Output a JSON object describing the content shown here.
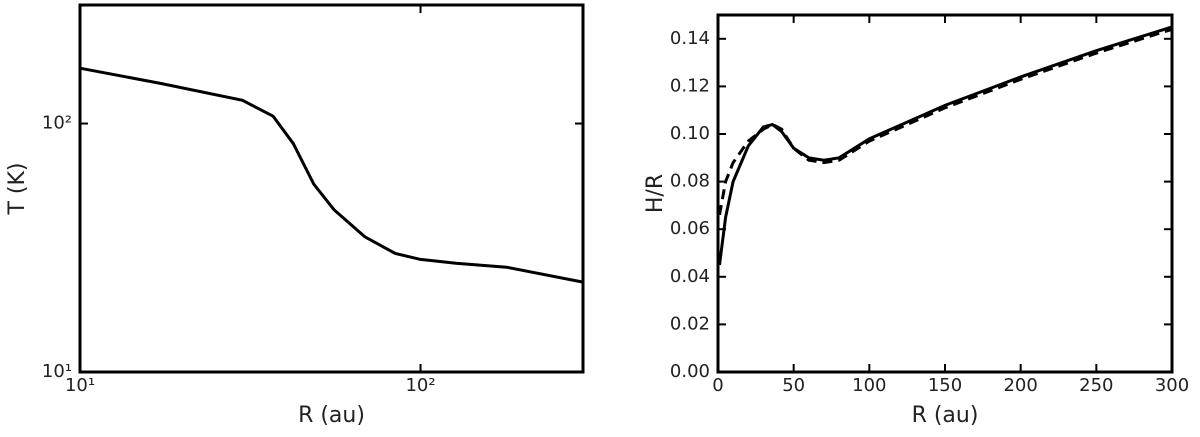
{
  "chart_data": [
    {
      "type": "line",
      "xlabel": "R (au)",
      "ylabel": "T (K)",
      "xlog": true,
      "ylog": true,
      "xlim": [
        10,
        300
      ],
      "ylim": [
        10,
        300
      ],
      "xticks": [
        {
          "value": 10,
          "label": "10¹"
        },
        {
          "value": 100,
          "label": "10²"
        }
      ],
      "yticks": [
        {
          "value": 10,
          "label": "10¹"
        },
        {
          "value": 100,
          "label": "10²"
        }
      ],
      "x": [
        10,
        17.3,
        30,
        36.9,
        42.3,
        48.6,
        55.7,
        68.6,
        84.3,
        100,
        127,
        179,
        300
      ],
      "series": [
        {
          "color": "#000000",
          "dash": false,
          "values": [
            167,
            145,
            124,
            107,
            83,
            57,
            45,
            35,
            30,
            28.4,
            27.4,
            26.4,
            23
          ]
        }
      ]
    },
    {
      "type": "line",
      "xlabel": "R (au)",
      "ylabel": "H/R",
      "xlog": false,
      "ylog": false,
      "xlim": [
        0,
        300
      ],
      "ylim": [
        0,
        0.15
      ],
      "xticks": [
        0,
        50,
        100,
        150,
        200,
        250,
        300
      ],
      "yticks": [
        {
          "value": 0,
          "label": "0.00"
        },
        {
          "value": 0.02,
          "label": "0.02"
        },
        {
          "value": 0.04,
          "label": "0.04"
        },
        {
          "value": 0.06,
          "label": "0.06"
        },
        {
          "value": 0.08,
          "label": "0.08"
        },
        {
          "value": 0.1,
          "label": "0.10"
        },
        {
          "value": 0.12,
          "label": "0.12"
        },
        {
          "value": 0.14,
          "label": "0.14"
        }
      ],
      "x": [
        1,
        5,
        10,
        20,
        30,
        36,
        42,
        50,
        60,
        70,
        80,
        100,
        125,
        150,
        200,
        250,
        300
      ],
      "series": [
        {
          "color": "#000000",
          "dash": false,
          "values": [
            0.045,
            0.065,
            0.08,
            0.095,
            0.103,
            0.104,
            0.101,
            0.094,
            0.09,
            0.089,
            0.09,
            0.098,
            0.105,
            0.112,
            0.124,
            0.135,
            0.145
          ]
        },
        {
          "color": "#000000",
          "dash": true,
          "values": [
            0.066,
            0.08,
            0.088,
            0.097,
            0.102,
            0.104,
            0.102,
            0.094,
            0.089,
            0.088,
            0.089,
            0.097,
            0.104,
            0.111,
            0.123,
            0.134,
            0.144
          ]
        }
      ]
    }
  ]
}
